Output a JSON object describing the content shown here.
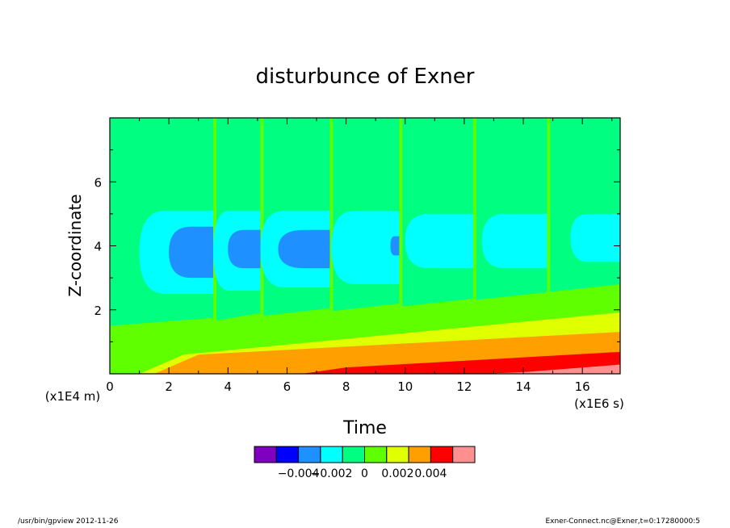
{
  "chart_data": {
    "type": "heatmap",
    "title": "disturbunce of Exner",
    "xlabel": "Time",
    "ylabel": "Z-coordinate",
    "x_unit": "(x1E6 s)",
    "y_unit": "(x1E4 m)",
    "xlim": [
      0,
      17.28
    ],
    "ylim": [
      0,
      8
    ],
    "x_ticks": [
      0,
      2,
      4,
      6,
      8,
      10,
      12,
      14,
      16
    ],
    "y_ticks": [
      2,
      4,
      6
    ],
    "x_tick_labels": [
      "0",
      "2",
      "4",
      "6",
      "8",
      "10",
      "12",
      "14",
      "16"
    ],
    "y_tick_labels": [
      "2",
      "4",
      "6"
    ],
    "colorbar": {
      "colors": [
        "#8000c0",
        "#0000ff",
        "#1e90ff",
        "#00ffff",
        "#00ff80",
        "#60ff00",
        "#e0ff00",
        "#ffa000",
        "#ff0000",
        "#ff9090"
      ],
      "tick_values": [
        -0.004,
        -0.002,
        0,
        0.002,
        0.004
      ],
      "tick_labels": [
        "−0.004",
        "−0.002",
        "0",
        "0.002",
        "0.004"
      ]
    },
    "background_level_color": "#00ff80",
    "cycles": [
      {
        "t0": 0.0,
        "t1": 3.5,
        "cyan": [
          1.0,
          3.5,
          2.5,
          5.1
        ],
        "blue": [
          2.0,
          3.5,
          3.0,
          4.6
        ],
        "green_top": 1.5
      },
      {
        "t0": 3.5,
        "t1": 5.1,
        "cyan": [
          3.5,
          5.1,
          2.6,
          5.1
        ],
        "blue": [
          4.0,
          5.1,
          3.3,
          4.5
        ],
        "green_top": 1.65
      },
      {
        "t0": 5.1,
        "t1": 7.45,
        "cyan": [
          5.1,
          7.45,
          2.7,
          5.1
        ],
        "blue": [
          5.7,
          7.45,
          3.3,
          4.5
        ],
        "green_top": 1.8
      },
      {
        "t0": 7.45,
        "t1": 9.8,
        "cyan": [
          7.5,
          9.8,
          2.8,
          5.1
        ],
        "blue": [
          9.5,
          9.8,
          3.7,
          4.3
        ],
        "green_top": 1.95
      },
      {
        "t0": 9.8,
        "t1": 12.3,
        "cyan": [
          10.0,
          12.3,
          3.3,
          5.0
        ],
        "blue": null,
        "green_top": 2.1
      },
      {
        "t0": 12.3,
        "t1": 14.8,
        "cyan": [
          12.6,
          14.8,
          3.3,
          5.0
        ],
        "blue": null,
        "green_top": 2.3
      },
      {
        "t0": 14.8,
        "t1": 17.28,
        "cyan": [
          15.6,
          17.28,
          3.5,
          5.0
        ],
        "blue": null,
        "green_top": 2.55
      }
    ],
    "bands": [
      {
        "color": "#e0ff00",
        "start": 1.0,
        "y0_end": 1.3,
        "slope_top": 0.038
      },
      {
        "color": "#ffa000",
        "start": 1.5,
        "y0_end": 0.6,
        "slope_top": 0.045
      },
      {
        "color": "#ff0000",
        "start": 6.5,
        "y0_end": 0.2,
        "slope_top": 0.045
      },
      {
        "color": "#ff9090",
        "start": 12.5,
        "y0_end": 0.05,
        "slope_top": 0.05
      }
    ]
  },
  "footer": {
    "left": "/usr/bin/gpview   2012-11-26",
    "right": "Exner-Connect.nc@Exner,t=0:17280000:5"
  }
}
